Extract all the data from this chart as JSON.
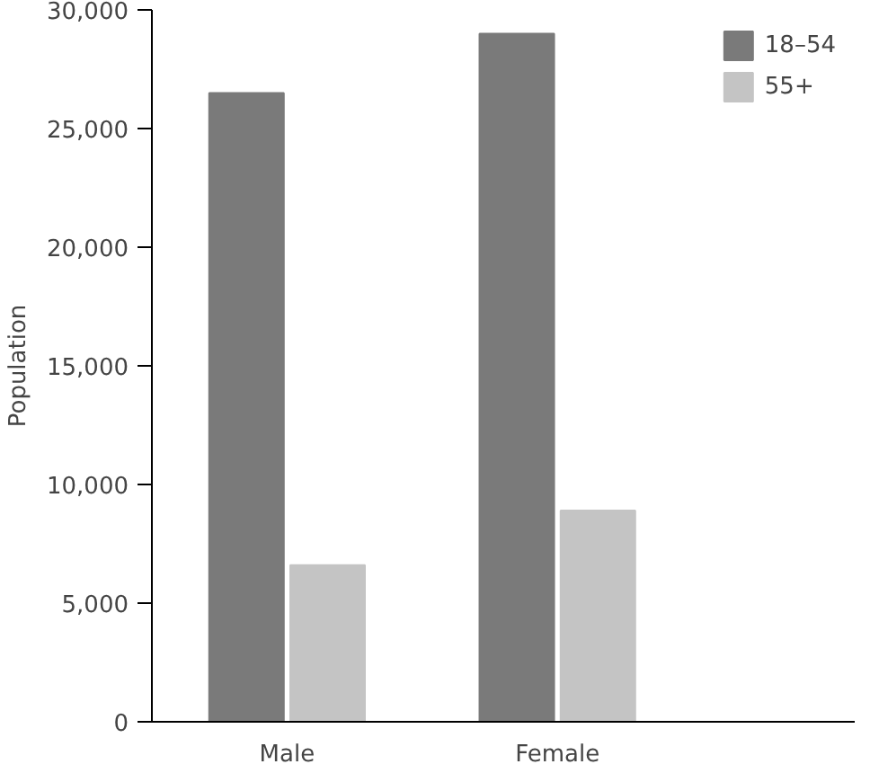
{
  "chart_data": {
    "type": "bar",
    "ylabel": "Population",
    "categories": [
      "Male",
      "Female"
    ],
    "series": [
      {
        "name": "18–54",
        "color": "#7a7a7a",
        "values": [
          26500,
          29000
        ]
      },
      {
        "name": "55+",
        "color": "#c4c4c4",
        "values": [
          6600,
          8900
        ]
      }
    ],
    "ylim": [
      0,
      30000
    ],
    "yticks": [
      {
        "value": 0,
        "label": "0"
      },
      {
        "value": 5000,
        "label": "5,000"
      },
      {
        "value": 10000,
        "label": "10,000"
      },
      {
        "value": 15000,
        "label": "15,000"
      },
      {
        "value": 20000,
        "label": "20,000"
      },
      {
        "value": 25000,
        "label": "25,000"
      },
      {
        "value": 30000,
        "label": "30,000"
      }
    ],
    "grid": false,
    "legend": "top right"
  }
}
